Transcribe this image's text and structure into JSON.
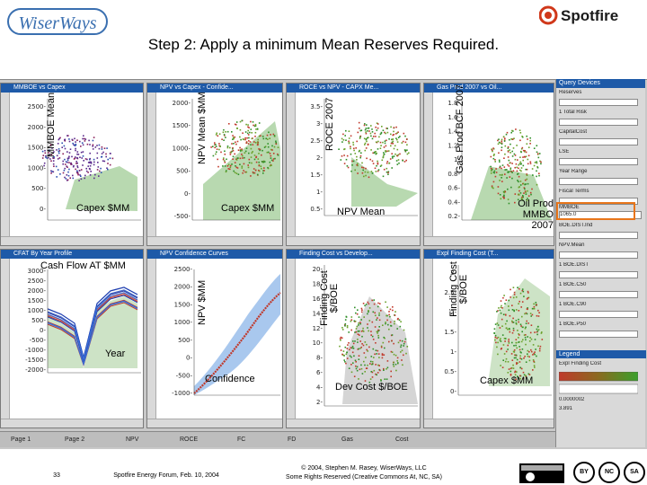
{
  "header": {
    "logo_left_text": "WiserWays",
    "logo_right_text": "Spotfire",
    "title": "Step 2: Apply a minimum Mean Reserves Required."
  },
  "panels": [
    {
      "title": "MMBOE vs Capex",
      "ylabel": "MMBOE Mean",
      "xlabel": "Capex $MM"
    },
    {
      "title": "NPV vs Capex - Confide...",
      "ylabel": "NPV Mean $MM",
      "xlabel": "Capex $MM"
    },
    {
      "title": "ROCE vs NPV - CAPX Me...",
      "ylabel": "ROCE 2007",
      "xlabel": "NPV Mean"
    },
    {
      "title": "Gas Prod 2007 vs Oil...",
      "ylabel": "Gas Prod BCF 2007",
      "xlabel": "Oil Prod MMBO 2007"
    },
    {
      "title": "CFAT By Year Profile",
      "ylabel": "",
      "xlabel": "Year",
      "inner_label": "Cash Flow AT $MM"
    },
    {
      "title": "NPV Confidence Curves",
      "ylabel": "NPV $MM",
      "xlabel": "Confidence"
    },
    {
      "title": "Finding Cost vs Develop...",
      "ylabel": "Finding Cost $/BOE",
      "xlabel": "Dev Cost $/BOE"
    },
    {
      "title": "Expl Finding Cost (T...",
      "ylabel": "Finding Cost $/BOE",
      "xlabel": "Capex $MM"
    }
  ],
  "ticks": {
    "p1_y": [
      "2500-",
      "2000-",
      "1500-",
      "1000-",
      "500-",
      "0-"
    ],
    "p2_y": [
      "2000-",
      "1500-",
      "1000-",
      "500-",
      "0-",
      "-500-"
    ],
    "p3_y": [
      "3.5-",
      "3-",
      "2.5-",
      "2-",
      "1.5-",
      "1-",
      "0.5-"
    ],
    "p4_y": [
      "1.8-",
      "1.6-",
      "1.4-",
      "1.2-",
      "1-",
      "0.8-",
      "0.6-",
      "0.4-",
      "0.2-"
    ],
    "p5_y": [
      "3000-",
      "2500-",
      "2000-",
      "1500-",
      "1000-",
      "500-",
      "0-",
      "-500-",
      "-1000-",
      "-1500-",
      "-2000-"
    ],
    "p6_y": [
      "2500-",
      "2000-",
      "1500-",
      "1000-",
      "500-",
      "0-",
      "-500-",
      "-1000-"
    ],
    "p7_y": [
      "20-",
      "18-",
      "16-",
      "14-",
      "12-",
      "10-",
      "8-",
      "6-",
      "4-",
      "2-"
    ],
    "p8_y": [
      "3-",
      "2.5-",
      "2-",
      "1.5-",
      "1-",
      "0.5-",
      "0-"
    ]
  },
  "query_devices": {
    "title": "Query Devices",
    "rows": [
      "Reserves",
      "1 Total Risk",
      "CapitalCost",
      "LSE",
      "Year Range",
      "Fiscal Terms",
      "MMBOE",
      "BOE.DIST.Ind",
      "NPV.Mean",
      "1 BOE.DIST",
      "1 BOE.C50",
      "1 BOE.C90",
      "1 BOE.P50"
    ],
    "highlight_value": "1065.0",
    "legend_title": "Legend",
    "legend_rows": [
      "Expl Finding Cost",
      "0.0000002",
      "3.891"
    ]
  },
  "tabs": [
    "Page 1",
    "Page 2",
    "NPV",
    "ROCE",
    "FC",
    "FD",
    "Gas",
    "Cost"
  ],
  "footer": {
    "page_number": "33",
    "event": "Spotfire Energy Forum, Feb. 10, 2004",
    "copyright": "© 2004, Stephen M. Rasey, WiserWays, LLC",
    "license": "Some Rights Reserved (Creative Commons At, NC, SA)",
    "cc_icons": [
      "BY",
      "NC",
      "SA"
    ]
  },
  "colors": {
    "titlebar": "#1e5aa8",
    "accent_orange": "#e8751a",
    "scatter_green": "#3aa02c",
    "scatter_red": "#c0392b",
    "confidence_band": "#a9c8ee"
  }
}
